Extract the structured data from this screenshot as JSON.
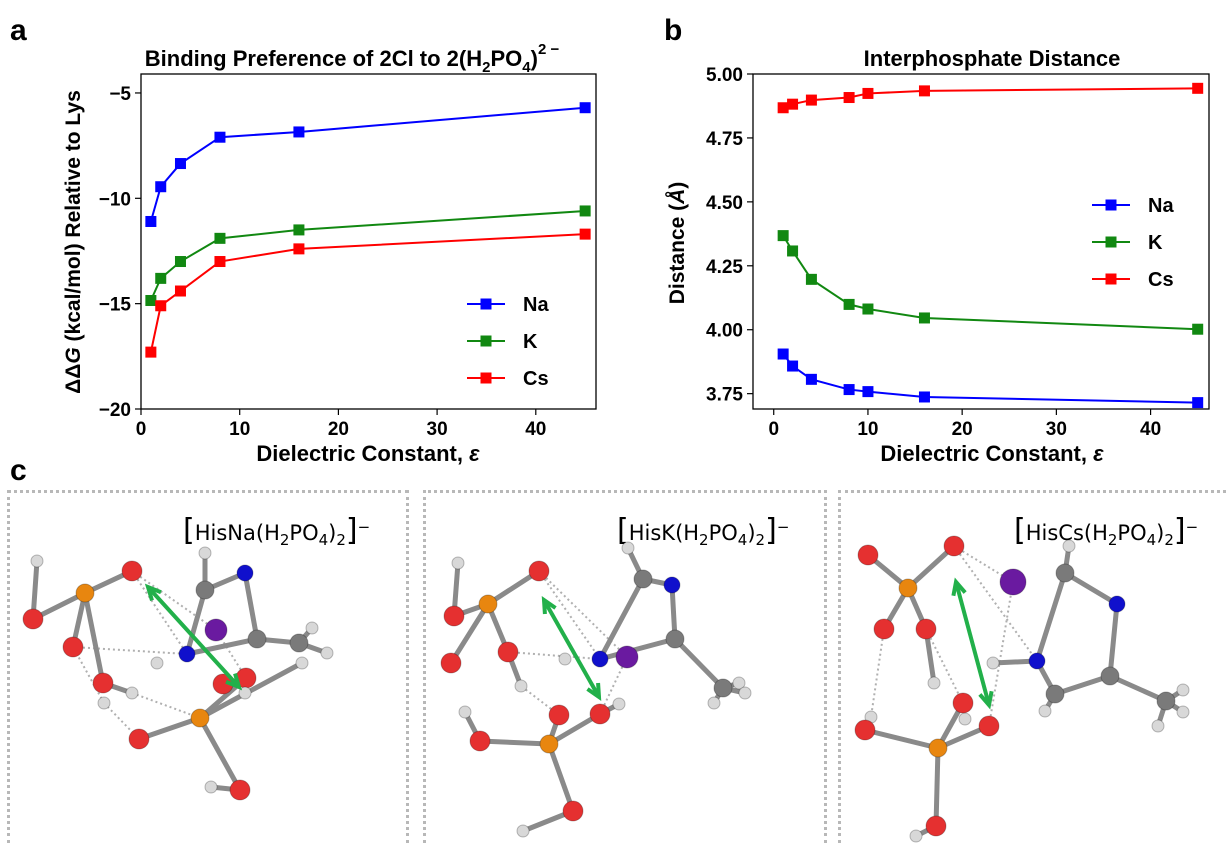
{
  "panel_labels": {
    "a": "a",
    "b": "b",
    "c": "c"
  },
  "colors": {
    "Na": "#0000ff",
    "K": "#118811",
    "Cs": "#ff0000",
    "oxygen": "#e53030",
    "phosphorus": "#e8860f",
    "nitrogen": "#1010cc",
    "hydrogen": "#d8d8d8",
    "carbon": "#7a7a7a",
    "metal": "#6a1aa0",
    "arrow": "#22b04a"
  },
  "chart_data": [
    {
      "type": "line",
      "title": "Binding Preference of 2Cl to 2(H2PO4)2−",
      "title_parts": {
        "main": "Binding Preference of 2Cl to 2(H",
        "sub1": "2",
        "mid": "PO",
        "sub2": "4",
        "end": ")",
        "sup": "2 −"
      },
      "xlabel": "Dielectric Constant, ε",
      "xlabel_parts": {
        "text": "Dielectric Constant, ",
        "symbol": "ε"
      },
      "ylabel": "ΔΔG (kcal/mol) Relative to Lys",
      "ylabel_parts": {
        "bold": "ΔΔ",
        "italic": "G",
        "rest": " (kcal/mol) Relative to Lys"
      },
      "xlim": [
        0,
        46.1
      ],
      "ylim": [
        -20,
        -4.1
      ],
      "xticks": [
        0,
        10,
        20,
        30,
        40
      ],
      "yticks": [
        -20,
        -15,
        -10,
        -5
      ],
      "ytick_labels": [
        "−20",
        "−15",
        "−10",
        "−5"
      ],
      "x": [
        1,
        2,
        4,
        8,
        16,
        45
      ],
      "series": [
        {
          "name": "Na",
          "values": [
            -11.1,
            -9.45,
            -8.35,
            -7.1,
            -6.85,
            -5.7
          ]
        },
        {
          "name": "K",
          "values": [
            -14.85,
            -13.8,
            -13.0,
            -11.9,
            -11.5,
            -10.6
          ]
        },
        {
          "name": "Cs",
          "values": [
            -17.3,
            -15.1,
            -14.4,
            -13.0,
            -12.4,
            -11.7
          ]
        }
      ],
      "legend": "bottom-right",
      "grid": false
    },
    {
      "type": "line",
      "title": "Interphosphate Distance",
      "xlabel": "Dielectric Constant, ε",
      "xlabel_parts": {
        "text": "Dielectric Constant, ",
        "symbol": "ε"
      },
      "ylabel": "Distance (Å)",
      "ylabel_parts": {
        "text": "Distance (",
        "symbol": "Å",
        "end": ")"
      },
      "xlim": [
        -2.2,
        46.2
      ],
      "ylim": [
        3.69,
        5.0
      ],
      "xticks": [
        0,
        10,
        20,
        30,
        40
      ],
      "yticks": [
        3.75,
        4.0,
        4.25,
        4.5,
        4.75,
        5.0
      ],
      "ytick_labels": [
        "3.75",
        "4.00",
        "4.25",
        "4.50",
        "4.75",
        "5.00"
      ],
      "x": [
        1,
        2,
        4,
        8,
        10,
        16,
        45
      ],
      "series": [
        {
          "name": "Na",
          "values": [
            3.905,
            3.858,
            3.806,
            3.766,
            3.758,
            3.737,
            3.715
          ]
        },
        {
          "name": "K",
          "values": [
            4.368,
            4.308,
            4.197,
            4.099,
            4.081,
            4.046,
            4.002
          ]
        },
        {
          "name": "Cs",
          "values": [
            4.868,
            4.882,
            4.898,
            4.908,
            4.924,
            4.934,
            4.944
          ]
        }
      ],
      "legend": "center-right",
      "grid": false
    }
  ],
  "molecules": [
    {
      "label_parts": {
        "lb": "[",
        "a": "HisNa",
        "b": "(H",
        "s1": "2",
        "c": "PO",
        "s2": "4",
        "d": ")",
        "s3": "2",
        "rb": "]",
        "sup": "−"
      }
    },
    {
      "label_parts": {
        "lb": "[",
        "a": "HisK",
        "b": "(H",
        "s1": "2",
        "c": "PO",
        "s2": "4",
        "d": ")",
        "s3": "2",
        "rb": "]",
        "sup": "−"
      }
    },
    {
      "label_parts": {
        "lb": "[",
        "a": "HisCs",
        "b": "(H",
        "s1": "2",
        "c": "PO",
        "s2": "4",
        "d": ")",
        "s3": "2",
        "rb": "]",
        "sup": "−"
      }
    }
  ]
}
